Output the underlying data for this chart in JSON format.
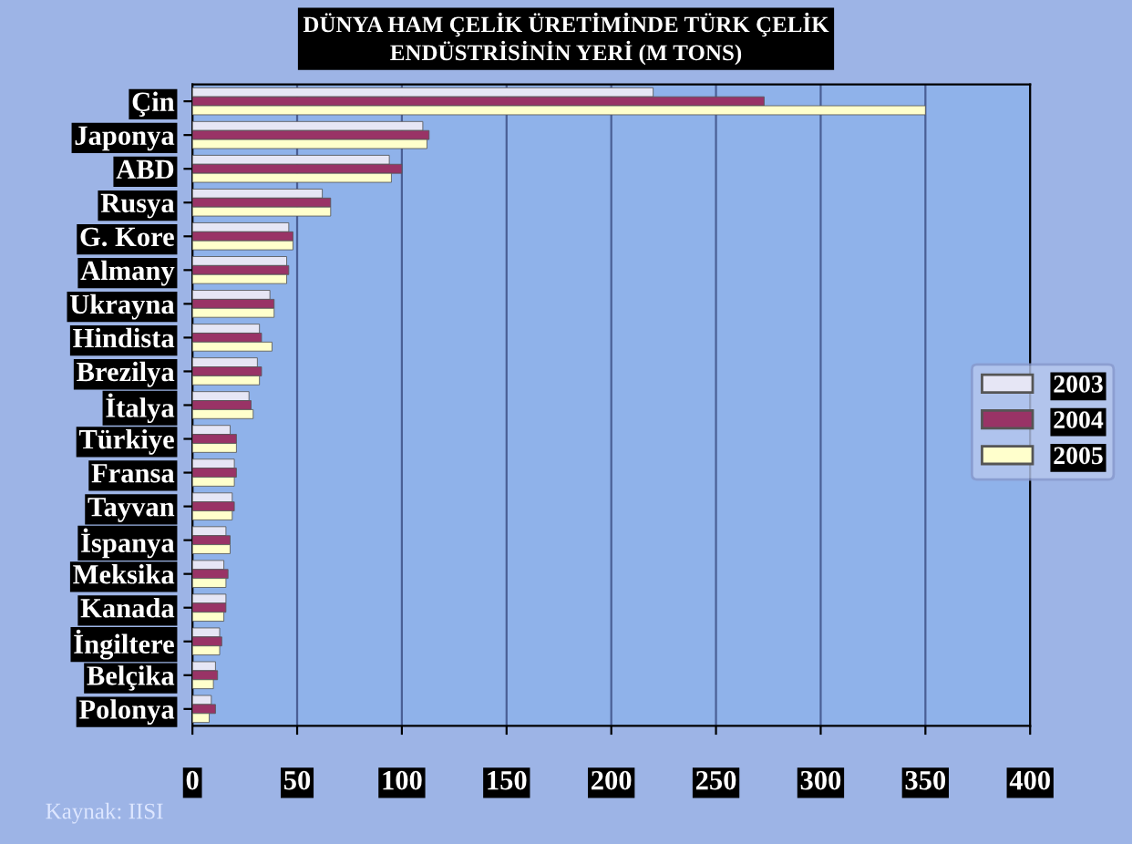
{
  "chart_data": {
    "type": "bar",
    "orientation": "horizontal",
    "title": "DÜNYA HAM ÇELİK ÜRETİMİNDE TÜRK ÇELİK\nENDÜSTRİSİNİN YERİ (M TONS)",
    "categories": [
      "Çin",
      "Japonya",
      "ABD",
      "Rusya",
      "G. Kore",
      "Almany",
      "Ukrayna",
      "Hindista",
      "Brezilya",
      "İtalya",
      "Türkiye",
      "Fransa",
      "Tayvan",
      "İspanya",
      "Meksika",
      "Kanada",
      "İngiltere",
      "Belçika",
      "Polonya"
    ],
    "series": [
      {
        "name": "2003",
        "color": "#e6e6f5",
        "values": [
          220,
          110,
          94,
          62,
          46,
          45,
          37,
          32,
          31,
          27,
          18,
          20,
          19,
          16,
          15,
          16,
          13,
          11,
          9
        ]
      },
      {
        "name": "2004",
        "color": "#993366",
        "values": [
          273,
          113,
          100,
          66,
          48,
          46,
          39,
          33,
          33,
          28,
          21,
          21,
          20,
          18,
          17,
          16,
          14,
          12,
          11
        ]
      },
      {
        "name": "2005",
        "color": "#ffffcc",
        "values": [
          350,
          112,
          95,
          66,
          48,
          45,
          39,
          38,
          32,
          29,
          21,
          20,
          19,
          18,
          16,
          15,
          13,
          10,
          8
        ]
      }
    ],
    "xlim": [
      0,
      400
    ],
    "xticks": [
      0,
      50,
      100,
      150,
      200,
      250,
      300,
      350,
      400
    ],
    "grid": "x",
    "legend": "right",
    "annotations": [
      "Kaynak: IISI"
    ]
  }
}
